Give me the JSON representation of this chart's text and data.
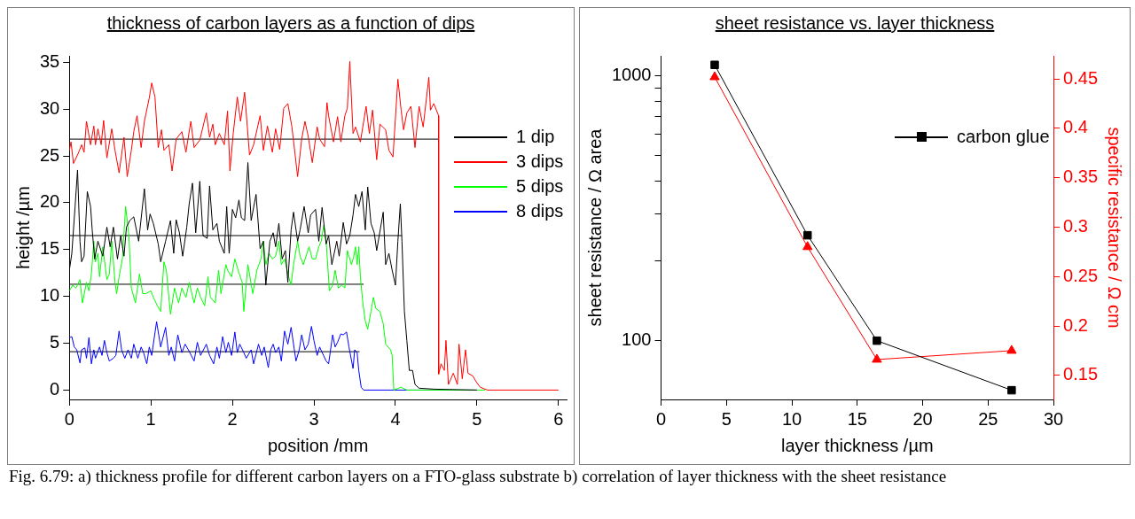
{
  "chart_data": [
    {
      "type": "line",
      "title": "thickness of carbon layers as a function of dips",
      "xlabel": "position /mm",
      "ylabel": "height /µm",
      "xlim": [
        0,
        6.1
      ],
      "xticks": [
        0,
        1,
        2,
        3,
        4,
        5,
        6
      ],
      "ylim": [
        -1,
        35.7
      ],
      "yticks": [
        0,
        5,
        10,
        15,
        20,
        25,
        30,
        35
      ],
      "legend": "top right",
      "annotations": [
        "Fig. 6.79: a) thickness profile for different carbon layers on a FTO-glass substrate b) correlation of layer thickness with the sheet resistance"
      ],
      "series": [
        {
          "name": "1 dip",
          "color": "#000000",
          "x": [
            0,
            0.03,
            0.07,
            0.1,
            0.13,
            0.15,
            0.18,
            0.22,
            0.26,
            0.28,
            0.31,
            0.35,
            0.41,
            0.46,
            0.5,
            0.54,
            0.59,
            0.63,
            0.67,
            0.7,
            0.74,
            0.79,
            0.85,
            0.92,
            0.96,
            0.99,
            1.03,
            1.09,
            1.12,
            1.18,
            1.24,
            1.28,
            1.31,
            1.35,
            1.39,
            1.44,
            1.47,
            1.51,
            1.55,
            1.6,
            1.64,
            1.69,
            1.72,
            1.76,
            1.81,
            1.84,
            1.9,
            1.93,
            1.96,
            2.0,
            2.04,
            2.08,
            2.11,
            2.15,
            2.19,
            2.23,
            2.29,
            2.34,
            2.38,
            2.41,
            2.46,
            2.5,
            2.53,
            2.57,
            2.61,
            2.65,
            2.68,
            2.72,
            2.75,
            2.8,
            2.83,
            2.88,
            2.93,
            2.96,
            3.02,
            3.06,
            3.1,
            3.15,
            3.18,
            3.22,
            3.28,
            3.31,
            3.36,
            3.4,
            3.44,
            3.48,
            3.51,
            3.55,
            3.59,
            3.63,
            3.66,
            3.7,
            3.74,
            3.77,
            3.85,
            3.88,
            3.92,
            3.96,
            4.0,
            4.03,
            4.06,
            4.08,
            4.11,
            4.14,
            4.17,
            4.21,
            4.24,
            4.29,
            4.47,
            5.0
          ],
          "values": [
            12.8,
            14.6,
            19.6,
            23.5,
            15.9,
            13.7,
            14.3,
            21.2,
            19.6,
            17.1,
            14.0,
            15.9,
            14.3,
            17.4,
            15.3,
            17.4,
            14.0,
            16.5,
            14.3,
            17.4,
            18.1,
            18.5,
            15.9,
            21.5,
            17.1,
            18.8,
            17.8,
            15.6,
            13.7,
            15.9,
            18.1,
            14.6,
            18.2,
            16.8,
            14.3,
            17.4,
            19.9,
            22.1,
            16.8,
            22.3,
            16.5,
            16.2,
            21.8,
            17.1,
            17.8,
            15.9,
            14.6,
            19.6,
            14.6,
            19.3,
            18.4,
            20.3,
            18.4,
            18.1,
            24.3,
            18.1,
            20.9,
            15.1,
            15.9,
            11.2,
            15.9,
            16.8,
            15.3,
            17.8,
            14.0,
            14.9,
            11.5,
            17.1,
            19.0,
            15.9,
            17.1,
            19.6,
            16.8,
            18.7,
            19.3,
            15.9,
            19.5,
            15.6,
            16.5,
            13.4,
            15.9,
            14.3,
            17.9,
            15.6,
            16.5,
            18.7,
            20.9,
            19.6,
            21.2,
            17.1,
            21.7,
            17.8,
            16.8,
            14.9,
            19.0,
            13.4,
            14.6,
            12.8,
            11.2,
            15.9,
            19.9,
            15.9,
            8.4,
            5.3,
            2.1,
            2.1,
            0.6,
            0.2,
            0.1,
            0
          ]
        },
        {
          "name": "3 dips",
          "color": "#ff0000",
          "x": [
            0,
            0.02,
            0.05,
            0.11,
            0.15,
            0.18,
            0.21,
            0.26,
            0.3,
            0.32,
            0.35,
            0.39,
            0.42,
            0.46,
            0.52,
            0.56,
            0.61,
            0.67,
            0.71,
            0.76,
            0.79,
            0.83,
            0.88,
            0.92,
            0.98,
            1.01,
            1.05,
            1.09,
            1.13,
            1.16,
            1.22,
            1.26,
            1.31,
            1.38,
            1.43,
            1.49,
            1.53,
            1.6,
            1.68,
            1.72,
            1.76,
            1.79,
            1.84,
            1.9,
            1.94,
            1.97,
            2.01,
            2.06,
            2.1,
            2.15,
            2.21,
            2.26,
            2.34,
            2.38,
            2.43,
            2.49,
            2.53,
            2.58,
            2.63,
            2.68,
            2.73,
            2.8,
            2.85,
            2.89,
            2.93,
            2.98,
            3.04,
            3.07,
            3.13,
            3.16,
            3.18,
            3.24,
            3.29,
            3.33,
            3.38,
            3.41,
            3.44,
            3.48,
            3.51,
            3.57,
            3.64,
            3.68,
            3.72,
            3.77,
            3.81,
            3.88,
            3.92,
            3.97,
            4.03,
            4.07,
            4.1,
            4.14,
            4.19,
            4.24,
            4.29,
            4.34,
            4.41,
            4.43,
            4.47,
            4.53,
            4.53,
            4.56,
            4.6,
            4.62,
            4.65,
            4.71,
            4.76,
            4.78,
            4.82,
            4.86,
            4.89,
            4.95,
            4.99,
            5.04,
            5.13,
            6.0
          ],
          "values": [
            25.6,
            26.5,
            24.2,
            25.3,
            26.2,
            25.4,
            28.7,
            26.2,
            28.2,
            26.2,
            27.9,
            26.2,
            28.8,
            24.8,
            27.9,
            25.6,
            23.2,
            27.0,
            22.8,
            25.6,
            27.6,
            29.3,
            25.9,
            28.7,
            31.2,
            32.8,
            31.3,
            25.9,
            27.8,
            25.6,
            26.2,
            23.4,
            26.8,
            27.6,
            25.4,
            28.7,
            25.9,
            26.7,
            29.6,
            27.0,
            28.4,
            26.2,
            27.4,
            26.2,
            29.8,
            23.4,
            27.4,
            31.3,
            28.7,
            31.8,
            25.1,
            26.2,
            29.3,
            25.6,
            28.2,
            25.4,
            27.9,
            25.7,
            30.1,
            30.6,
            28.1,
            22.8,
            26.8,
            28.7,
            27.1,
            24.3,
            28.1,
            26.8,
            26.0,
            30.7,
            29.3,
            26.5,
            29.2,
            26.5,
            29.3,
            30.1,
            35.1,
            27.4,
            28.1,
            26.5,
            30.3,
            27.4,
            29.9,
            24.6,
            28.4,
            27.8,
            25.6,
            24.9,
            33.2,
            29.9,
            27.8,
            29.6,
            30.3,
            25.9,
            30.3,
            28.1,
            33.4,
            29.9,
            30.6,
            29.3,
            1.7,
            2.8,
            2.1,
            5.3,
            0.6,
            1.8,
            0.6,
            4.9,
            1.2,
            4.3,
            1.8,
            1.5,
            0.9,
            0.3,
            0,
            0
          ]
        },
        {
          "name": "5 dips",
          "color": "#00ff00",
          "x": [
            0,
            0.04,
            0.08,
            0.13,
            0.16,
            0.21,
            0.24,
            0.27,
            0.3,
            0.32,
            0.35,
            0.37,
            0.41,
            0.46,
            0.49,
            0.52,
            0.56,
            0.58,
            0.61,
            0.65,
            0.69,
            0.73,
            0.76,
            0.81,
            0.86,
            0.9,
            0.94,
            1.0,
            1.03,
            1.08,
            1.12,
            1.16,
            1.19,
            1.24,
            1.29,
            1.34,
            1.38,
            1.43,
            1.47,
            1.53,
            1.57,
            1.61,
            1.66,
            1.7,
            1.73,
            1.79,
            1.83,
            1.86,
            1.92,
            1.94,
            1.99,
            2.03,
            2.07,
            2.12,
            2.14,
            2.19,
            2.25,
            2.3,
            2.35,
            2.38,
            2.41,
            2.45,
            2.49,
            2.53,
            2.57,
            2.6,
            2.64,
            2.69,
            2.72,
            2.75,
            2.8,
            2.83,
            2.87,
            2.94,
            2.98,
            3.02,
            3.06,
            3.09,
            3.12,
            3.15,
            3.19,
            3.23,
            3.26,
            3.3,
            3.34,
            3.38,
            3.41,
            3.46,
            3.49,
            3.51,
            3.53,
            3.55,
            3.57,
            3.6,
            3.63,
            3.66,
            3.7,
            3.73,
            3.76,
            3.81,
            3.85,
            3.88,
            3.94,
            3.96,
            3.98,
            4.07,
            4.14,
            5.1
          ],
          "values": [
            10.6,
            11.2,
            10.9,
            11.8,
            9.3,
            11.5,
            10.6,
            12.4,
            15.9,
            13.7,
            14.6,
            12.1,
            15.3,
            11.8,
            12.4,
            15.9,
            11.5,
            10.3,
            12.1,
            14.0,
            19.6,
            16.5,
            10.9,
            9.3,
            12.4,
            10.3,
            10.3,
            10.6,
            9.9,
            9.0,
            8.4,
            13.7,
            12.8,
            8.1,
            10.9,
            9.3,
            10.9,
            9.9,
            11.5,
            9.3,
            10.9,
            9.9,
            9.0,
            12.1,
            9.9,
            9.3,
            12.8,
            10.3,
            13.4,
            12.8,
            12.1,
            14.0,
            12.8,
            11.5,
            8.4,
            13.4,
            10.3,
            12.8,
            14.0,
            15.9,
            13.4,
            14.6,
            14.0,
            14.3,
            15.9,
            13.4,
            14.0,
            12.1,
            11.2,
            13.4,
            15.9,
            14.3,
            13.4,
            15.3,
            14.0,
            14.0,
            15.3,
            15.9,
            17.6,
            15.9,
            10.6,
            11.2,
            12.8,
            10.9,
            11.2,
            10.9,
            14.9,
            13.4,
            14.3,
            15.3,
            13.4,
            15.3,
            12.1,
            9.3,
            7.4,
            6.5,
            8.4,
            9.9,
            8.7,
            8.4,
            7.1,
            4.9,
            4.3,
            3.7,
            0,
            0.3,
            0,
            0
          ]
        },
        {
          "name": "8 dips",
          "color": "#0000ff",
          "x": [
            0,
            0.03,
            0.06,
            0.09,
            0.13,
            0.15,
            0.19,
            0.21,
            0.24,
            0.27,
            0.3,
            0.32,
            0.37,
            0.4,
            0.43,
            0.46,
            0.49,
            0.54,
            0.57,
            0.61,
            0.64,
            0.68,
            0.72,
            0.76,
            0.79,
            0.84,
            0.88,
            0.91,
            0.95,
            0.98,
            1.01,
            1.07,
            1.12,
            1.18,
            1.22,
            1.25,
            1.29,
            1.33,
            1.38,
            1.42,
            1.46,
            1.53,
            1.57,
            1.61,
            1.68,
            1.72,
            1.77,
            1.81,
            1.84,
            1.88,
            1.92,
            1.95,
            1.99,
            2.03,
            2.06,
            2.09,
            2.14,
            2.17,
            2.23,
            2.26,
            2.32,
            2.36,
            2.39,
            2.44,
            2.47,
            2.5,
            2.53,
            2.57,
            2.6,
            2.64,
            2.68,
            2.72,
            2.78,
            2.82,
            2.85,
            2.89,
            2.93,
            2.97,
            3.0,
            3.04,
            3.07,
            3.15,
            3.18,
            3.23,
            3.26,
            3.29,
            3.33,
            3.36,
            3.4,
            3.43,
            3.48,
            3.5,
            3.53,
            3.55,
            3.58,
            3.61,
            5.0
          ],
          "values": [
            5.6,
            5.7,
            4.6,
            4.3,
            2.9,
            4.3,
            4.5,
            3.4,
            5.6,
            2.8,
            4.3,
            3.4,
            4.6,
            3.7,
            5.3,
            4.0,
            3.1,
            3.4,
            3.7,
            6.3,
            4.3,
            3.4,
            4.3,
            3.4,
            4.9,
            3.4,
            4.6,
            4.0,
            2.8,
            4.6,
            3.7,
            7.3,
            4.6,
            6.7,
            3.7,
            4.6,
            3.1,
            5.9,
            4.0,
            4.9,
            4.3,
            3.1,
            5.1,
            3.7,
            4.9,
            3.7,
            2.8,
            4.6,
            3.4,
            5.7,
            4.0,
            5.1,
            3.7,
            6.2,
            4.0,
            4.9,
            4.0,
            3.4,
            4.3,
            2.8,
            4.9,
            3.7,
            4.6,
            2.4,
            4.3,
            4.9,
            4.0,
            4.6,
            3.1,
            6.3,
            4.9,
            6.7,
            3.1,
            4.3,
            5.9,
            4.3,
            4.9,
            6.8,
            5.3,
            3.7,
            4.6,
            3.1,
            2.8,
            5.9,
            4.6,
            5.1,
            6.0,
            5.9,
            6.2,
            4.6,
            2.3,
            4.3,
            4.0,
            2.1,
            0.3,
            0,
            0
          ]
        },
        {
          "color": "#000000",
          "x": [
            0,
            4.08
          ],
          "values": [
            16.5,
            16.5
          ]
        },
        {
          "color": "#000000",
          "x": [
            0,
            4.53
          ],
          "values": [
            26.8,
            26.8
          ]
        },
        {
          "color": "#000000",
          "x": [
            0,
            3.61
          ],
          "values": [
            11.3,
            11.3
          ]
        },
        {
          "color": "#000000",
          "x": [
            0,
            3.56
          ],
          "values": [
            4.1,
            4.1
          ]
        }
      ]
    },
    {
      "type": "line",
      "title": "sheet resistance vs. layer thickness",
      "xlabel": "layer thickness /µm",
      "ylabel": "sheet resistance / Ω area",
      "y2label": "specific resistance / Ω cm",
      "log": "y",
      "xlim": [
        0,
        30
      ],
      "xticks": [
        0,
        5,
        10,
        15,
        20,
        25,
        30
      ],
      "ylim": [
        60,
        1190
      ],
      "yticks": [
        100,
        {
          "value": 200,
          "label": null
        },
        {
          "value": 300,
          "label": null
        },
        {
          "value": 400,
          "label": null
        },
        {
          "value": 500,
          "label": null
        },
        {
          "value": 600,
          "label": null
        },
        {
          "value": 700,
          "label": null
        },
        {
          "value": 800,
          "label": null
        },
        {
          "value": 900,
          "label": null
        },
        1000
      ],
      "y2lim": [
        0.1256,
        0.4735
      ],
      "y2ticks": [
        0.15,
        0.2,
        0.25,
        0.3,
        0.35,
        0.4,
        0.45
      ],
      "legend": "top right",
      "series": [
        {
          "name": "carbon glue",
          "color": "#000000",
          "marker": "square",
          "x": [
            4.1,
            11.2,
            16.5,
            26.8
          ],
          "values": [
            1100,
            250,
            100,
            65
          ]
        },
        {
          "color": "#ff0000",
          "marker": "triangle",
          "axis": "y2",
          "x": [
            4.1,
            11.2,
            16.5,
            26.8
          ],
          "values": [
            0.452,
            0.28,
            0.166,
            0.175
          ]
        }
      ]
    }
  ]
}
